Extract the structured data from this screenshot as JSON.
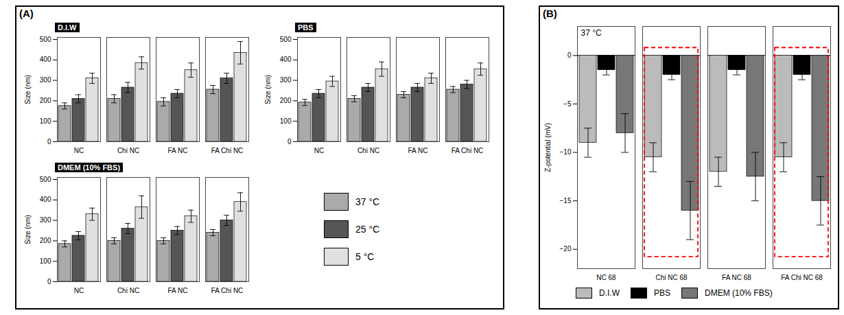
{
  "chart_data": [
    {
      "type": "bar",
      "panel_label": "(A)",
      "title": "D.I.W",
      "categories": [
        "NC",
        "Chi NC",
        "FA NC",
        "FA Chi NC"
      ],
      "series": [
        {
          "name": "37 °C",
          "color": "#aaaaaa",
          "values": [
            175,
            210,
            195,
            255
          ],
          "errors": [
            15,
            20,
            20,
            20
          ]
        },
        {
          "name": "25 °C",
          "color": "#555555",
          "values": [
            210,
            265,
            235,
            310
          ],
          "errors": [
            20,
            25,
            20,
            25
          ]
        },
        {
          "name": "5 °C",
          "color": "#e0e0e0",
          "values": [
            310,
            385,
            350,
            435
          ],
          "errors": [
            25,
            30,
            35,
            55
          ]
        }
      ],
      "ylabel": "Size (nm)",
      "ylim": [
        0,
        510
      ],
      "yticks": [
        0,
        100,
        200,
        300,
        400,
        500
      ]
    },
    {
      "type": "bar",
      "title": "PBS",
      "categories": [
        "NC",
        "Chi NC",
        "FA NC",
        "FA Chi NC"
      ],
      "series": [
        {
          "name": "37 °C",
          "color": "#aaaaaa",
          "values": [
            192,
            210,
            230,
            255
          ],
          "errors": [
            15,
            15,
            15,
            15
          ]
        },
        {
          "name": "25 °C",
          "color": "#555555",
          "values": [
            235,
            265,
            265,
            280
          ],
          "errors": [
            20,
            20,
            20,
            20
          ]
        },
        {
          "name": "5 °C",
          "color": "#e0e0e0",
          "values": [
            295,
            355,
            310,
            355
          ],
          "errors": [
            25,
            35,
            25,
            30
          ]
        }
      ],
      "ylabel": "Size (nm)",
      "ylim": [
        0,
        510
      ],
      "yticks": [
        0,
        100,
        200,
        300,
        400,
        500
      ]
    },
    {
      "type": "bar",
      "title": "DMEM (10% FBS)",
      "categories": [
        "NC",
        "Chi NC",
        "FA NC",
        "FA Chi NC"
      ],
      "series": [
        {
          "name": "37 °C",
          "color": "#aaaaaa",
          "values": [
            185,
            200,
            200,
            240
          ],
          "errors": [
            15,
            15,
            15,
            15
          ]
        },
        {
          "name": "25 °C",
          "color": "#555555",
          "values": [
            225,
            260,
            250,
            300
          ],
          "errors": [
            20,
            25,
            20,
            25
          ]
        },
        {
          "name": "5 °C",
          "color": "#e0e0e0",
          "values": [
            330,
            365,
            320,
            390
          ],
          "errors": [
            30,
            55,
            30,
            45
          ]
        }
      ],
      "ylabel": "Size (nm)",
      "ylim": [
        0,
        510
      ],
      "yticks": [
        0,
        100,
        200,
        300,
        400,
        500
      ],
      "legend": "right"
    },
    {
      "type": "bar",
      "panel_label": "(B)",
      "categories": [
        "NC 68",
        "Chi NC 68",
        "FA NC 68",
        "FA Chi NC 68"
      ],
      "series": [
        {
          "name": "D.I.W",
          "color": "#bbbbbb",
          "values": [
            -9.0,
            -10.5,
            -12.0,
            -10.5
          ],
          "errors": [
            1.5,
            1.5,
            1.5,
            1.5
          ]
        },
        {
          "name": "PBS",
          "color": "#000000",
          "values": [
            -1.5,
            -2.0,
            -1.5,
            -2.0
          ],
          "errors": [
            0.5,
            0.5,
            0.5,
            0.5
          ]
        },
        {
          "name": "DMEM (10% FBS)",
          "color": "#777777",
          "values": [
            -8.0,
            -16.0,
            -12.5,
            -15.0
          ],
          "errors": [
            2.0,
            3.0,
            2.5,
            2.5
          ]
        }
      ],
      "ylabel": "Z-potential (mV)",
      "ylim": [
        -22,
        3
      ],
      "yticks": [
        0,
        -5,
        -10,
        -15,
        -20
      ],
      "annotations": [
        "37 °C"
      ],
      "reference_lines": [
        {
          "y": 0
        }
      ],
      "highlights": [
        {
          "category": "Chi NC 68",
          "y": [
            -21.0,
            1.0
          ],
          "color": "red",
          "line_style": "dashed"
        },
        {
          "category": "FA Chi NC 68",
          "y": [
            -21.0,
            1.0
          ],
          "color": "red",
          "line_style": "dashed"
        }
      ],
      "legend": "lower left"
    }
  ]
}
